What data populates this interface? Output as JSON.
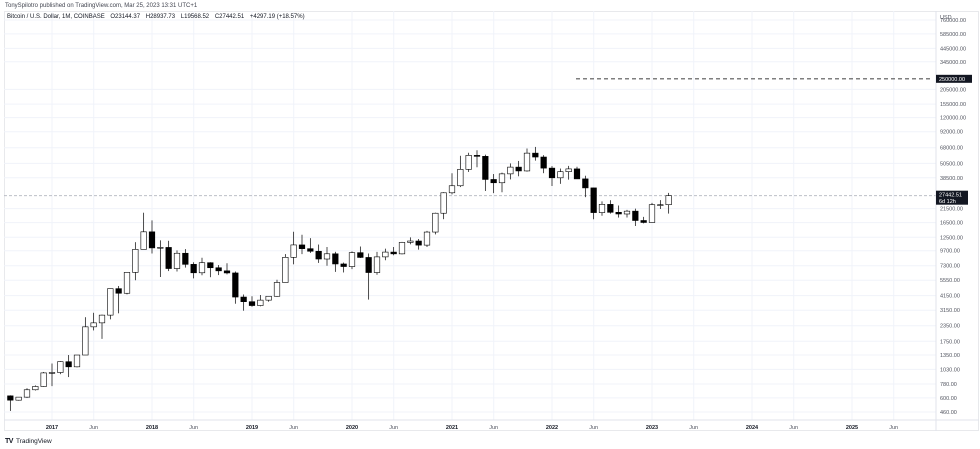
{
  "header": {
    "publisher_line": "TonySpilotro published on TradingView.com, Mar 25, 2023 13:31 UTC+1"
  },
  "legend": {
    "symbol": "Bitcoin / U.S. Dollar, 1M, COINBASE",
    "open": "O23144.37",
    "high": "H28937.73",
    "low": "L19568.52",
    "close": "C27442.51",
    "change": "+4297.19 (+18.57%)"
  },
  "price_axis": {
    "currency": "USD",
    "labels": [
      "760000.00",
      "585000.00",
      "445000.00",
      "345000.00",
      "205000.00",
      "155000.00",
      "120000.00",
      "92000.00",
      "68000.00",
      "50500.00",
      "38500.00",
      "21500.00",
      "16500.00",
      "12500.00",
      "9700.00",
      "7300.00",
      "5550.00",
      "4150.00",
      "3150.00",
      "2350.00",
      "1750.00",
      "1350.00",
      "1030.00",
      "780.00",
      "600.00",
      "460.00"
    ],
    "target_label": "250000.00",
    "current_price_label": "27442.51",
    "countdown_label": "6d 12h"
  },
  "time_axis": {
    "labels": [
      {
        "text": "2017",
        "year": true
      },
      {
        "text": "Jun",
        "year": false
      },
      {
        "text": "2018",
        "year": true
      },
      {
        "text": "Jun",
        "year": false
      },
      {
        "text": "2019",
        "year": true
      },
      {
        "text": "Jun",
        "year": false
      },
      {
        "text": "2020",
        "year": true
      },
      {
        "text": "Jun",
        "year": false
      },
      {
        "text": "2021",
        "year": true
      },
      {
        "text": "Jun",
        "year": false
      },
      {
        "text": "2022",
        "year": true
      },
      {
        "text": "Jun",
        "year": false
      },
      {
        "text": "2023",
        "year": true
      },
      {
        "text": "Jun",
        "year": false
      },
      {
        "text": "2024",
        "year": true
      },
      {
        "text": "Jun",
        "year": false
      },
      {
        "text": "2025",
        "year": true
      },
      {
        "text": "Jun",
        "year": false
      }
    ]
  },
  "footer": {
    "logo_mark": "TV",
    "brand": "TradingView"
  },
  "colors": {
    "up_fill": "#ffffff",
    "down_fill": "#000000",
    "candle_border": "#000000",
    "grid": "#f0f3fa",
    "target_line": "#555555",
    "price_line": "#b2b5be"
  },
  "chart_data": {
    "type": "candlestick",
    "title": "Bitcoin / U.S. Dollar, 1M, COINBASE",
    "scale": "log",
    "ylabel": "USD",
    "ylim": [
      400,
      900000
    ],
    "annotations": [
      {
        "type": "horizontal_dashed_line",
        "value": 250000,
        "label": "250000.00",
        "from": "2021-11",
        "to": "2026-09"
      },
      {
        "type": "current_price_line",
        "value": 27442.51,
        "label": "27442.51",
        "countdown": "6d 12h"
      }
    ],
    "x": [
      "2016-08",
      "2016-09",
      "2016-10",
      "2016-11",
      "2016-12",
      "2017-01",
      "2017-02",
      "2017-03",
      "2017-04",
      "2017-05",
      "2017-06",
      "2017-07",
      "2017-08",
      "2017-09",
      "2017-10",
      "2017-11",
      "2017-12",
      "2018-01",
      "2018-02",
      "2018-03",
      "2018-04",
      "2018-05",
      "2018-06",
      "2018-07",
      "2018-08",
      "2018-09",
      "2018-10",
      "2018-11",
      "2018-12",
      "2019-01",
      "2019-02",
      "2019-03",
      "2019-04",
      "2019-05",
      "2019-06",
      "2019-07",
      "2019-08",
      "2019-09",
      "2019-10",
      "2019-11",
      "2019-12",
      "2020-01",
      "2020-02",
      "2020-03",
      "2020-04",
      "2020-05",
      "2020-06",
      "2020-07",
      "2020-08",
      "2020-09",
      "2020-10",
      "2020-11",
      "2020-12",
      "2021-01",
      "2021-02",
      "2021-03",
      "2021-04",
      "2021-05",
      "2021-06",
      "2021-07",
      "2021-08",
      "2021-09",
      "2021-10",
      "2021-11",
      "2021-12",
      "2022-01",
      "2022-02",
      "2022-03",
      "2022-04",
      "2022-05",
      "2022-06",
      "2022-07",
      "2022-08",
      "2022-09",
      "2022-10",
      "2022-11",
      "2022-12",
      "2023-01",
      "2023-02",
      "2023-03"
    ],
    "ohlc": [
      [
        624,
        630,
        469,
        575
      ],
      [
        575,
        610,
        570,
        609
      ],
      [
        609,
        720,
        600,
        700
      ],
      [
        700,
        760,
        690,
        745
      ],
      [
        745,
        980,
        740,
        963
      ],
      [
        963,
        1150,
        750,
        970
      ],
      [
        970,
        1200,
        940,
        1190
      ],
      [
        1190,
        1350,
        890,
        1080
      ],
      [
        1080,
        1350,
        1070,
        1350
      ],
      [
        1350,
        2760,
        1350,
        2300
      ],
      [
        2300,
        3000,
        2150,
        2480
      ],
      [
        2480,
        2900,
        1830,
        2870
      ],
      [
        2870,
        4750,
        2650,
        4735
      ],
      [
        4735,
        4980,
        2970,
        4340
      ],
      [
        4340,
        6450,
        4250,
        6440
      ],
      [
        6440,
        11400,
        5550,
        9950
      ],
      [
        9950,
        19890,
        10700,
        13860
      ],
      [
        13860,
        17200,
        9200,
        10230
      ],
      [
        10230,
        11800,
        5900,
        10320
      ],
      [
        10320,
        11700,
        6600,
        6925
      ],
      [
        6925,
        9750,
        6550,
        9245
      ],
      [
        9245,
        10000,
        7050,
        7495
      ],
      [
        7495,
        7800,
        5750,
        6390
      ],
      [
        6390,
        8500,
        6100,
        7730
      ],
      [
        7730,
        7800,
        5880,
        7030
      ],
      [
        7030,
        7400,
        6120,
        6630
      ],
      [
        6630,
        7650,
        6200,
        6370
      ],
      [
        6370,
        6550,
        3560,
        4040
      ],
      [
        4040,
        4240,
        3120,
        3700
      ],
      [
        3700,
        4100,
        3360,
        3440
      ],
      [
        3440,
        4200,
        3390,
        3810
      ],
      [
        3810,
        4100,
        3700,
        4100
      ],
      [
        4100,
        5600,
        4060,
        5320
      ],
      [
        5320,
        9100,
        5320,
        8560
      ],
      [
        8560,
        13880,
        7500,
        10820
      ],
      [
        10820,
        13100,
        9100,
        10080
      ],
      [
        10080,
        12300,
        9300,
        9600
      ],
      [
        9600,
        10900,
        7700,
        8290
      ],
      [
        8290,
        10400,
        7300,
        9150
      ],
      [
        9150,
        9500,
        6500,
        7550
      ],
      [
        7550,
        7750,
        6430,
        7190
      ],
      [
        7190,
        9580,
        6850,
        9350
      ],
      [
        9350,
        10500,
        8450,
        8540
      ],
      [
        8540,
        9200,
        3850,
        6420
      ],
      [
        6420,
        9480,
        6150,
        8630
      ],
      [
        8630,
        10080,
        8100,
        9450
      ],
      [
        9450,
        10400,
        8900,
        9140
      ],
      [
        9140,
        11450,
        9050,
        11350
      ],
      [
        11350,
        12480,
        10950,
        11650
      ],
      [
        11650,
        12100,
        9900,
        10780
      ],
      [
        10780,
        14100,
        10400,
        13800
      ],
      [
        13800,
        19900,
        13200,
        19700
      ],
      [
        19700,
        29300,
        17600,
        28990
      ],
      [
        28990,
        41950,
        28130,
        33110
      ],
      [
        33110,
        58350,
        32300,
        45150
      ],
      [
        45150,
        61790,
        43000,
        58800
      ],
      [
        58800,
        64850,
        47000,
        57750
      ],
      [
        57750,
        59600,
        30000,
        37300
      ],
      [
        37300,
        41330,
        28800,
        35040
      ],
      [
        35040,
        42400,
        29300,
        41460
      ],
      [
        41460,
        50500,
        37330,
        47100
      ],
      [
        47100,
        52920,
        39600,
        43820
      ],
      [
        43820,
        67000,
        43300,
        61350
      ],
      [
        61350,
        69000,
        53250,
        57000
      ],
      [
        57000,
        59050,
        42000,
        46220
      ],
      [
        46220,
        47990,
        32950,
        38480
      ],
      [
        38480,
        45850,
        34330,
        43190
      ],
      [
        43190,
        48200,
        37170,
        45540
      ],
      [
        45540,
        47440,
        37700,
        37700
      ],
      [
        37700,
        40030,
        26700,
        31800
      ],
      [
        31800,
        31980,
        17570,
        19940
      ],
      [
        19940,
        24650,
        18780,
        23300
      ],
      [
        23300,
        25200,
        19550,
        20050
      ],
      [
        20050,
        22800,
        18150,
        19420
      ],
      [
        19420,
        20990,
        18190,
        20490
      ],
      [
        20490,
        21480,
        15480,
        17170
      ],
      [
        17170,
        18390,
        16260,
        16540
      ],
      [
        16540,
        23950,
        16500,
        23140
      ],
      [
        23140,
        25250,
        21350,
        23144
      ],
      [
        23144.37,
        28937.73,
        19568.52,
        27442.51
      ]
    ]
  }
}
